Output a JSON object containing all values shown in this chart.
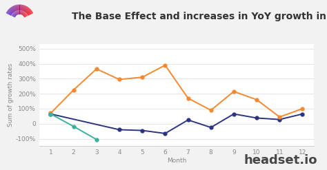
{
  "title": "The Base Effect and increases in YoY growth in WA",
  "xlabel": "Month",
  "ylabel": "Sum of growth rates",
  "series": {
    "2019": {
      "x": [
        1,
        4,
        5,
        6,
        7,
        8,
        9,
        10,
        11,
        12
      ],
      "y": [
        65,
        -40,
        -45,
        -65,
        25,
        -25,
        65,
        38,
        28,
        65
      ],
      "color": "#2b3480",
      "marker": "o"
    },
    "2020": {
      "x": [
        1,
        2,
        3,
        4,
        5,
        6,
        7,
        8,
        9,
        10,
        11,
        12
      ],
      "y": [
        70,
        225,
        365,
        295,
        310,
        390,
        170,
        90,
        215,
        160,
        45,
        100
      ],
      "color": "#f4892f",
      "marker": "o"
    },
    "2021": {
      "x": [
        1,
        2,
        3
      ],
      "y": [
        65,
        -18,
        -105
      ],
      "color": "#3ab19b",
      "marker": "o"
    }
  },
  "ylim": [
    -150,
    530
  ],
  "xlim": [
    0.5,
    12.5
  ],
  "yticks": [
    -100,
    0,
    100,
    200,
    300,
    400,
    500
  ],
  "ytick_labels": [
    "-100%",
    "0",
    "100%",
    "200%",
    "300%",
    "400%",
    "500%"
  ],
  "xticks": [
    1,
    2,
    3,
    4,
    5,
    6,
    7,
    8,
    9,
    10,
    11,
    12
  ],
  "bg_color": "#f2f2f2",
  "plot_bg_color": "#ffffff",
  "watermark": "headset.io",
  "title_fontsize": 10,
  "axis_label_fontsize": 6.5,
  "tick_fontsize": 6.5,
  "legend_fontsize": 7,
  "watermark_fontsize": 13
}
